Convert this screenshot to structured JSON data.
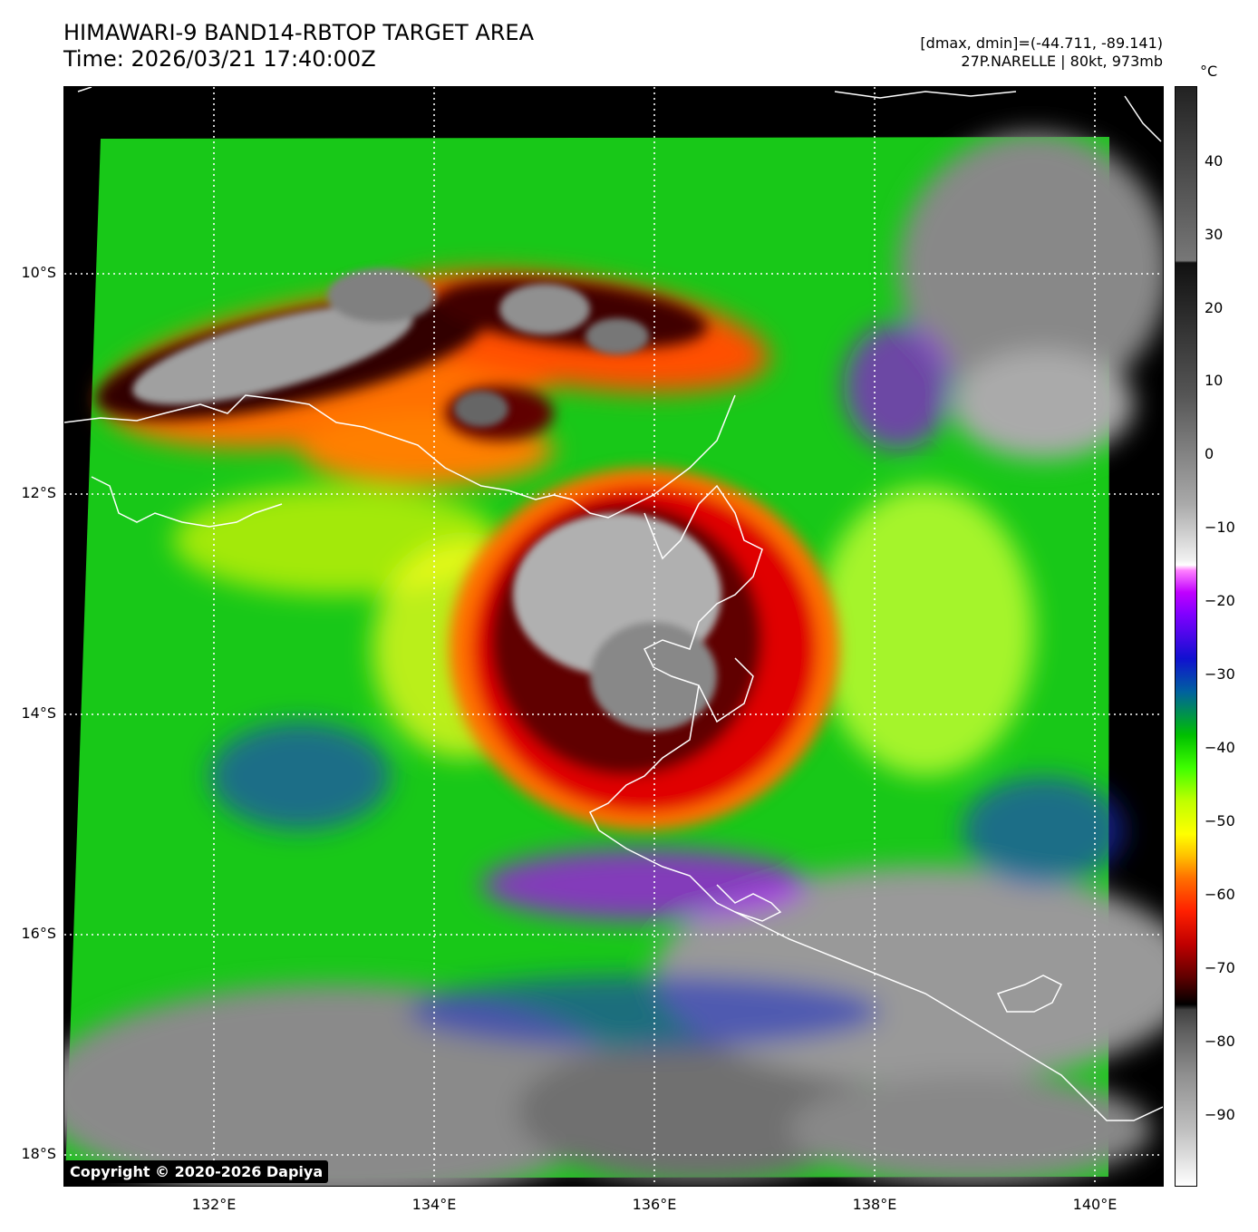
{
  "header": {
    "title_line1": "HIMAWARI-9 BAND14-RBTOP TARGET AREA",
    "title_line2": "Time: 2026/03/21 17:40:00Z",
    "stats_line1": "[dmax, dmin]=(-44.711, -89.141)",
    "stats_line2": "27P.NARELLE | 80kt, 973mb"
  },
  "axes": {
    "lat_labels": [
      "10°S",
      "12°S",
      "14°S",
      "16°S",
      "18°S"
    ],
    "lon_labels": [
      "132°E",
      "134°E",
      "136°E",
      "138°E",
      "140°E"
    ]
  },
  "colorbar": {
    "unit": "°C",
    "ticks": [
      "40",
      "30",
      "20",
      "10",
      "0",
      "−10",
      "−20",
      "−30",
      "−40",
      "−50",
      "−60",
      "−70",
      "−80",
      "−90"
    ],
    "colors": {
      "warm_gray_top": "#333333",
      "white": "#ffffff",
      "purple": "#a000ff",
      "blue": "#1010d0",
      "green": "#00d000",
      "yellow": "#ffff00",
      "orange": "#ff8000",
      "red": "#d00000",
      "black": "#000000",
      "cold_gray": "#909090"
    }
  },
  "footer": {
    "copyright": "Copyright © 2020-2026 Dapiya"
  }
}
